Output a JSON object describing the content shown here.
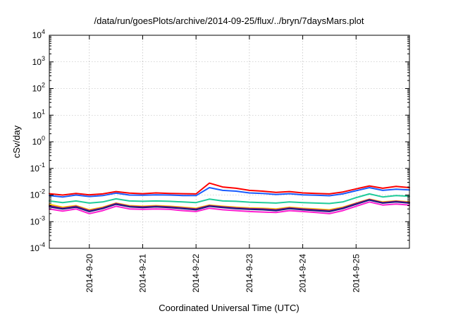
{
  "chart_data": {
    "type": "line",
    "title": "/data/run/goesPlots/archive/2014-09-25/flux/../bryn/7daysMars.plot",
    "xlabel": "Coordinated Universal Time (UTC)",
    "ylabel": "cSv/day",
    "yscale": "log",
    "ylim": [
      0.0001,
      10000
    ],
    "yticks": [
      {
        "mantissa": "10",
        "exp": "-4"
      },
      {
        "mantissa": "10",
        "exp": "-3"
      },
      {
        "mantissa": "10",
        "exp": "-2"
      },
      {
        "mantissa": "10",
        "exp": "-1"
      },
      {
        "mantissa": "10",
        "exp": "0"
      },
      {
        "mantissa": "10",
        "exp": "1"
      },
      {
        "mantissa": "10",
        "exp": "2"
      },
      {
        "mantissa": "10",
        "exp": "3"
      },
      {
        "mantissa": "10",
        "exp": "4"
      }
    ],
    "xlim": [
      "2014-09-19T06:00",
      "2014-09-26T00:00"
    ],
    "xticks": [
      "2014-9-20",
      "2014-9-21",
      "2014-9-22",
      "2014-9-23",
      "2014-9-24",
      "2014-9-25"
    ],
    "grid": true,
    "x": [
      "2014-09-19T06:00",
      "2014-09-19T12:00",
      "2014-09-19T18:00",
      "2014-09-20T00:00",
      "2014-09-20T06:00",
      "2014-09-20T12:00",
      "2014-09-20T18:00",
      "2014-09-21T00:00",
      "2014-09-21T06:00",
      "2014-09-21T12:00",
      "2014-09-21T18:00",
      "2014-09-22T00:00",
      "2014-09-22T06:00",
      "2014-09-22T12:00",
      "2014-09-22T18:00",
      "2014-09-23T00:00",
      "2014-09-23T06:00",
      "2014-09-23T12:00",
      "2014-09-23T18:00",
      "2014-09-24T00:00",
      "2014-09-24T06:00",
      "2014-09-24T12:00",
      "2014-09-24T18:00",
      "2014-09-25T00:00",
      "2014-09-25T06:00",
      "2014-09-25T12:00",
      "2014-09-25T18:00",
      "2014-09-26T00:00"
    ],
    "series": [
      {
        "color": "#ff0000",
        "values": [
          0.0112,
          0.01,
          0.0115,
          0.0102,
          0.011,
          0.0135,
          0.0118,
          0.0112,
          0.012,
          0.0115,
          0.0112,
          0.011,
          0.028,
          0.02,
          0.018,
          0.015,
          0.014,
          0.0125,
          0.0135,
          0.012,
          0.0115,
          0.011,
          0.013,
          0.017,
          0.022,
          0.018,
          0.021,
          0.019
        ]
      },
      {
        "color": "#1a5cff",
        "values": [
          0.0095,
          0.0085,
          0.01,
          0.0088,
          0.0095,
          0.0118,
          0.01,
          0.0098,
          0.0102,
          0.01,
          0.0096,
          0.0095,
          0.019,
          0.015,
          0.014,
          0.012,
          0.0115,
          0.0105,
          0.0112,
          0.0102,
          0.0098,
          0.0094,
          0.011,
          0.0145,
          0.019,
          0.015,
          0.0165,
          0.0155
        ]
      },
      {
        "color": "#1fcc9a",
        "values": [
          0.006,
          0.0052,
          0.006,
          0.005,
          0.0055,
          0.0072,
          0.006,
          0.0058,
          0.006,
          0.0058,
          0.0055,
          0.0052,
          0.007,
          0.006,
          0.0058,
          0.0054,
          0.0052,
          0.005,
          0.0055,
          0.0052,
          0.005,
          0.0048,
          0.0055,
          0.008,
          0.011,
          0.0085,
          0.0095,
          0.009
        ]
      },
      {
        "color": "#ffcc00",
        "values": [
          0.0045,
          0.0035,
          0.004,
          0.0028,
          0.0035,
          0.005,
          0.004,
          0.0038,
          0.004,
          0.0038,
          0.0035,
          0.0032,
          0.0042,
          0.0038,
          0.0035,
          0.0033,
          0.0032,
          0.003,
          0.0035,
          0.0032,
          0.003,
          0.0028,
          0.0035,
          0.005,
          0.007,
          0.0055,
          0.006,
          0.0055
        ]
      },
      {
        "color": "#9c1a7a",
        "values": [
          0.004,
          0.0032,
          0.0038,
          0.0026,
          0.0033,
          0.0048,
          0.0038,
          0.0036,
          0.0038,
          0.0036,
          0.0033,
          0.003,
          0.004,
          0.0036,
          0.0033,
          0.0031,
          0.003,
          0.0028,
          0.0033,
          0.003,
          0.0028,
          0.0026,
          0.0033,
          0.0048,
          0.0068,
          0.0052,
          0.0058,
          0.0052
        ]
      },
      {
        "color": "#1a1a80",
        "values": [
          0.0036,
          0.003,
          0.0035,
          0.0024,
          0.0031,
          0.0045,
          0.0036,
          0.0034,
          0.0036,
          0.0034,
          0.0031,
          0.0028,
          0.0038,
          0.0034,
          0.0031,
          0.0029,
          0.0028,
          0.0026,
          0.0031,
          0.0028,
          0.0026,
          0.0024,
          0.0031,
          0.0045,
          0.0065,
          0.005,
          0.0055,
          0.005
        ]
      },
      {
        "color": "#ff1fd0",
        "values": [
          0.003,
          0.0025,
          0.003,
          0.002,
          0.0026,
          0.0038,
          0.003,
          0.0029,
          0.003,
          0.0029,
          0.0026,
          0.0024,
          0.0032,
          0.0028,
          0.0026,
          0.0024,
          0.0023,
          0.0022,
          0.0026,
          0.0024,
          0.0022,
          0.002,
          0.0026,
          0.0038,
          0.0055,
          0.0042,
          0.0046,
          0.0042
        ]
      }
    ]
  }
}
